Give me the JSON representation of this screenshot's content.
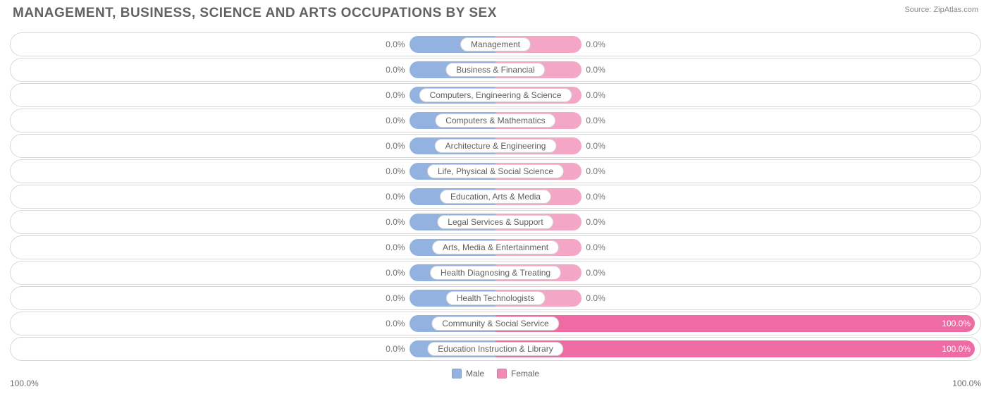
{
  "title": "MANAGEMENT, BUSINESS, SCIENCE AND ARTS OCCUPATIONS BY SEX",
  "source": "Source: ZipAtlas.com",
  "axis_left": "100.0%",
  "axis_right": "100.0%",
  "legend": {
    "male": {
      "label": "Male",
      "color": "#93b2e0"
    },
    "female": {
      "label": "Female",
      "color": "#ef8ab4"
    }
  },
  "chart": {
    "type": "diverging-bar",
    "background": "#ffffff",
    "row_border": "#d8d8d8",
    "label_border": "#d0d0d0",
    "text_color": "#707070",
    "min_bar_pct": 18,
    "male_color": "#93b2e0",
    "female_color_low": "#f4a6c6",
    "female_color_high": "#ee6ba3",
    "categories": [
      {
        "name": "Management",
        "male": 0.0,
        "female": 0.0
      },
      {
        "name": "Business & Financial",
        "male": 0.0,
        "female": 0.0
      },
      {
        "name": "Computers, Engineering & Science",
        "male": 0.0,
        "female": 0.0
      },
      {
        "name": "Computers & Mathematics",
        "male": 0.0,
        "female": 0.0
      },
      {
        "name": "Architecture & Engineering",
        "male": 0.0,
        "female": 0.0
      },
      {
        "name": "Life, Physical & Social Science",
        "male": 0.0,
        "female": 0.0
      },
      {
        "name": "Education, Arts & Media",
        "male": 0.0,
        "female": 0.0
      },
      {
        "name": "Legal Services & Support",
        "male": 0.0,
        "female": 0.0
      },
      {
        "name": "Arts, Media & Entertainment",
        "male": 0.0,
        "female": 0.0
      },
      {
        "name": "Health Diagnosing & Treating",
        "male": 0.0,
        "female": 0.0
      },
      {
        "name": "Health Technologists",
        "male": 0.0,
        "female": 0.0
      },
      {
        "name": "Community & Social Service",
        "male": 0.0,
        "female": 100.0
      },
      {
        "name": "Education Instruction & Library",
        "male": 0.0,
        "female": 100.0
      }
    ]
  }
}
